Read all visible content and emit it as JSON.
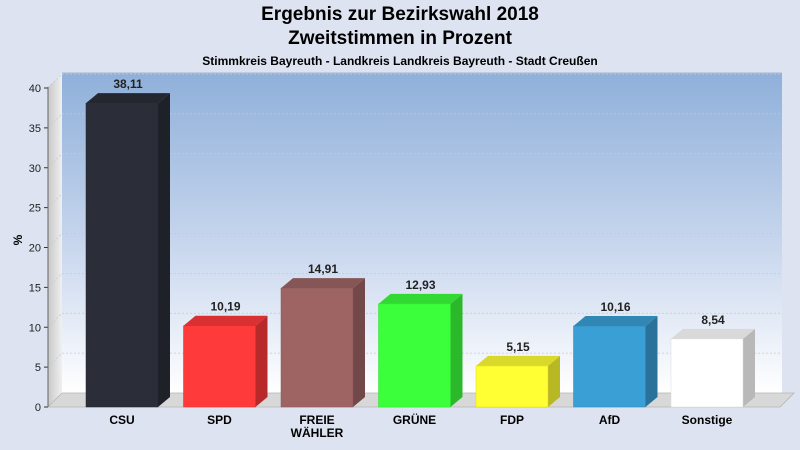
{
  "chart_data": {
    "type": "bar",
    "title": "Ergebnis zur Bezirkswahl 2018",
    "subtitle": "Zweitstimmen in Prozent",
    "subtitle2": "Stimmkreis Bayreuth - Landkreis Landkreis Bayreuth - Stadt Creußen",
    "ylabel": "%",
    "ylim": [
      0,
      40
    ],
    "yticks": [
      "0",
      "5",
      "10",
      "15",
      "20",
      "25",
      "30",
      "35",
      "40"
    ],
    "grid": true,
    "categories": [
      [
        "CSU"
      ],
      [
        "SPD"
      ],
      [
        "FREIE",
        "WÄHLER"
      ],
      [
        "GRÜNE"
      ],
      [
        "FDP"
      ],
      [
        "AfD"
      ],
      [
        "Sonstige"
      ]
    ],
    "values": [
      38.11,
      10.19,
      14.91,
      12.93,
      5.15,
      10.16,
      8.54
    ],
    "value_labels": [
      "38,11",
      "10,19",
      "14,91",
      "12,93",
      "5,15",
      "10,16",
      "8,54"
    ],
    "colors": [
      "#2b2e38",
      "#ff3a3a",
      "#9e6464",
      "#3cff3c",
      "#ffff33",
      "#3a9fd4",
      "#ffffff"
    ]
  }
}
